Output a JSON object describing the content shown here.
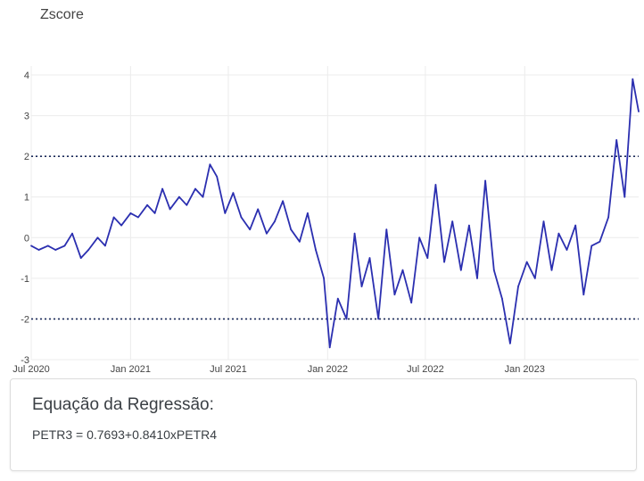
{
  "chart": {
    "title": "Zscore"
  },
  "regression": {
    "title": "Equação da Regressão:",
    "formula": "PETR3 = 0.7693+0.8410xPETR4"
  },
  "chart_data": {
    "type": "line",
    "title": "Zscore",
    "xlabel": "",
    "ylabel": "",
    "x_ticks": [
      "Jul 2020",
      "Jan 2021",
      "Jul 2021",
      "Jan 2022",
      "Jul 2022",
      "Jan 2023"
    ],
    "y_ticks": [
      4,
      3,
      2,
      1,
      0,
      -1,
      -2,
      -3
    ],
    "ylim": [
      -3,
      4
    ],
    "xlim": [
      "2020-07-01",
      "2023-07-31"
    ],
    "grid": true,
    "line_color": "#2b2fb0",
    "reference_lines": [
      {
        "y": 2,
        "style": "dotted",
        "color": "#1a2a5a"
      },
      {
        "y": -2,
        "style": "dotted",
        "color": "#1a2a5a"
      }
    ],
    "series": [
      {
        "x": [
          "2020-07-01",
          "2020-07-15",
          "2020-08-01",
          "2020-08-15",
          "2020-09-01",
          "2020-09-15",
          "2020-10-01",
          "2020-10-15",
          "2020-11-01",
          "2020-11-15",
          "2020-12-01",
          "2020-12-15",
          "2021-01-01",
          "2021-01-15",
          "2021-02-01",
          "2021-02-15",
          "2021-03-01",
          "2021-03-15",
          "2021-04-01",
          "2021-04-15",
          "2021-05-01",
          "2021-05-15",
          "2021-05-28",
          "2021-06-10",
          "2021-06-25",
          "2021-07-10",
          "2021-07-25",
          "2021-08-10",
          "2021-08-25",
          "2021-09-10",
          "2021-09-25",
          "2021-10-10",
          "2021-10-25",
          "2021-11-10",
          "2021-11-25",
          "2021-12-10",
          "2021-12-25",
          "2022-01-05",
          "2022-01-20",
          "2022-02-05",
          "2022-02-20",
          "2022-03-05",
          "2022-03-20",
          "2022-04-05",
          "2022-04-20",
          "2022-05-05",
          "2022-05-20",
          "2022-06-05",
          "2022-06-20",
          "2022-07-05",
          "2022-07-20",
          "2022-08-05",
          "2022-08-20",
          "2022-09-05",
          "2022-09-20",
          "2022-10-05",
          "2022-10-20",
          "2022-11-05",
          "2022-11-20",
          "2022-12-05",
          "2022-12-20",
          "2023-01-05",
          "2023-01-20",
          "2023-02-05",
          "2023-02-20",
          "2023-03-05",
          "2023-03-20",
          "2023-04-05",
          "2023-04-20",
          "2023-05-05",
          "2023-05-20",
          "2023-06-05",
          "2023-06-20",
          "2023-07-05",
          "2023-07-20",
          "2023-07-31"
        ],
        "values": [
          -0.2,
          -0.3,
          -0.2,
          -0.3,
          -0.2,
          0.1,
          -0.5,
          -0.3,
          0.0,
          -0.2,
          0.5,
          0.3,
          0.6,
          0.5,
          0.8,
          0.6,
          1.2,
          0.7,
          1.0,
          0.8,
          1.2,
          1.0,
          1.8,
          1.5,
          0.6,
          1.1,
          0.5,
          0.2,
          0.7,
          0.1,
          0.4,
          0.9,
          0.2,
          -0.1,
          0.6,
          -0.3,
          -1.0,
          -2.7,
          -1.5,
          -2.0,
          0.1,
          -1.2,
          -0.5,
          -2.0,
          0.2,
          -1.4,
          -0.8,
          -1.6,
          0.0,
          -0.5,
          1.3,
          -0.6,
          0.4,
          -0.8,
          0.3,
          -1.0,
          1.4,
          -0.8,
          -1.5,
          -2.6,
          -1.2,
          -0.6,
          -1.0,
          0.4,
          -0.8,
          0.1,
          -0.3,
          0.3,
          -1.4,
          -0.2,
          -0.1,
          0.5,
          2.4,
          1.0,
          3.9,
          3.1
        ]
      }
    ]
  }
}
